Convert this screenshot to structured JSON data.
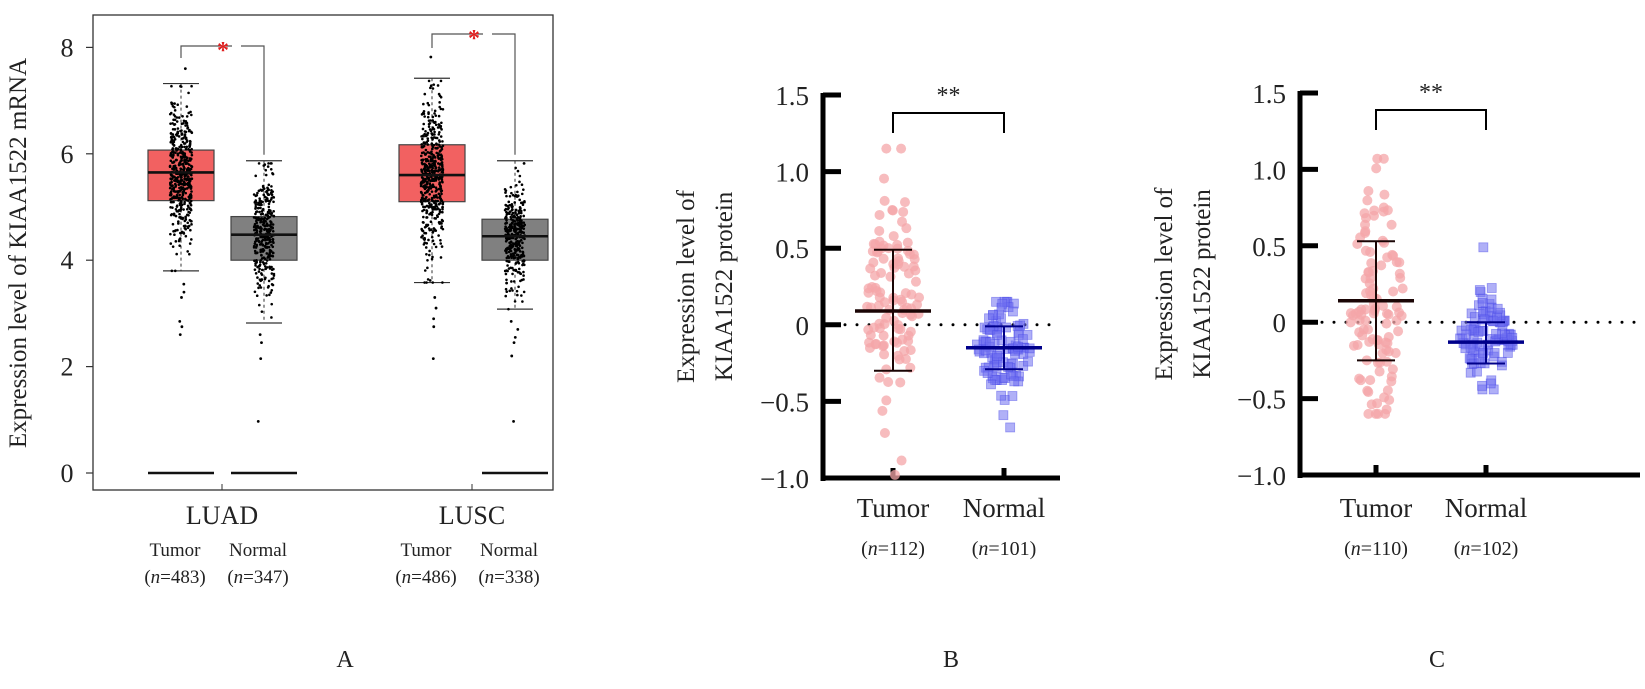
{
  "chart_data": [
    {
      "panel": "A",
      "type": "box",
      "ylabel": "Expression level of KIAA1522 mRNA",
      "yticks": [
        0,
        2,
        4,
        6,
        8
      ],
      "ylim": [
        -0.35,
        8.6
      ],
      "groups": [
        {
          "label": "LUAD",
          "significance": "*",
          "boxes": [
            {
              "name": "Tumor",
              "n_label": "(n=483)",
              "n": 483,
              "color": "#f26161",
              "q1": 5.12,
              "median": 5.65,
              "q3": 6.07,
              "whisker_low": 3.8,
              "whisker_high": 7.32,
              "outliers": [
                7.6,
                3.55,
                3.4,
                3.3,
                2.85,
                2.75,
                2.6,
                0
              ]
            },
            {
              "name": "Normal",
              "n_label": "(n=347)",
              "n": 347,
              "color": "#808080",
              "q1": 4.0,
              "median": 4.48,
              "q3": 4.82,
              "whisker_low": 2.82,
              "whisker_high": 5.87,
              "outliers": [
                2.6,
                2.45,
                2.15,
                0.97,
                0
              ]
            }
          ]
        },
        {
          "label": "LUSC",
          "significance": "*",
          "boxes": [
            {
              "name": "Tumor",
              "n_label": "(n=486)",
              "n": 486,
              "color": "#f26161",
              "q1": 5.1,
              "median": 5.6,
              "q3": 6.17,
              "whisker_low": 3.58,
              "whisker_high": 7.42,
              "outliers": [
                7.82,
                3.3,
                3.1,
                2.9,
                2.75,
                2.15
              ]
            },
            {
              "name": "Normal",
              "n_label": "(n=338)",
              "n": 338,
              "color": "#808080",
              "q1": 4.0,
              "median": 4.45,
              "q3": 4.77,
              "whisker_low": 3.08,
              "whisker_high": 5.87,
              "outliers": [
                2.85,
                2.7,
                2.55,
                2.45,
                2.2,
                0.97,
                0
              ]
            }
          ]
        }
      ]
    },
    {
      "panel": "B",
      "type": "scatter",
      "ylabel_lines": [
        "Expression level of",
        "KIAA1522 protein"
      ],
      "yticks": [
        "1.5",
        "1.0",
        "0.5",
        "0",
        "−0.5",
        "−1.0"
      ],
      "ytick_values": [
        1.5,
        1.0,
        0.5,
        0,
        -0.5,
        -1.0
      ],
      "ylim": [
        -1.0,
        1.5
      ],
      "reference_line": 0,
      "significance": "**",
      "groups": [
        {
          "name": "Tumor",
          "n_label": "(n=112)",
          "n": 112,
          "marker": "circle",
          "color": "#f4a5a8",
          "mean": 0.09,
          "sd_low": -0.3,
          "sd_high": 0.49,
          "min": -0.98,
          "max": 1.15
        },
        {
          "name": "Normal",
          "n_label": "(n=101)",
          "n": 101,
          "marker": "square",
          "color": "#6f6ff0",
          "mean": -0.15,
          "sd_low": -0.29,
          "sd_high": -0.01,
          "min": -0.67,
          "max": 0.15
        }
      ]
    },
    {
      "panel": "C",
      "type": "scatter",
      "ylabel_lines": [
        "Expression level of",
        "KIAA1522 protein"
      ],
      "yticks": [
        "1.5",
        "1.0",
        "0.5",
        "0",
        "−0.5",
        "−1.0"
      ],
      "ytick_values": [
        1.5,
        1.0,
        0.5,
        0,
        -0.5,
        -1.0
      ],
      "ylim": [
        -1.0,
        1.5
      ],
      "reference_line": 0,
      "significance": "**",
      "groups": [
        {
          "name": "Tumor",
          "n_label": "(n=110)",
          "n": 110,
          "marker": "circle",
          "color": "#f4a5a8",
          "mean": 0.14,
          "sd_low": -0.25,
          "sd_high": 0.53,
          "min": -0.6,
          "max": 1.07
        },
        {
          "name": "Normal",
          "n_label": "(n=102)",
          "n": 102,
          "marker": "square",
          "color": "#6f6ff0",
          "mean": -0.13,
          "sd_low": -0.27,
          "sd_high": 0.0,
          "min": -0.44,
          "max": 0.49
        }
      ]
    }
  ],
  "panel_labels": [
    "A",
    "B",
    "C"
  ],
  "colors": {
    "significance_star_A": "#e02020",
    "tumor_box": "#f26161",
    "normal_box": "#808080",
    "tumor_points": "#f4a5a8",
    "normal_points": "#6f6ff0"
  }
}
